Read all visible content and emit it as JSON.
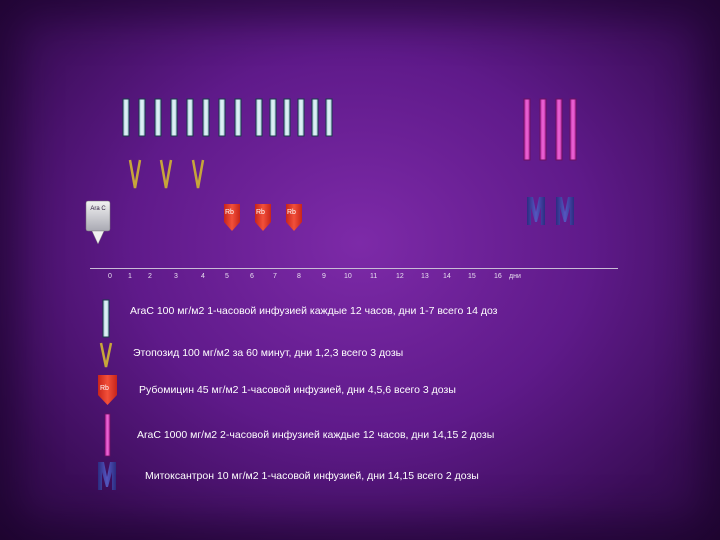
{
  "timeline": {
    "ticks": [
      "0",
      "1",
      "2",
      "3",
      "4",
      "5",
      "6",
      "7",
      "8",
      "9",
      "10",
      "11",
      "12",
      "13",
      "14",
      "15",
      "16"
    ],
    "unit": "дни"
  },
  "markers": {
    "arac_label": "Ara C",
    "rb_label": "Rb"
  },
  "legend": [
    {
      "icon": "arac-low-bar",
      "text": "AraC  100 мг/м2 1-часовой инфузией каждые 12 часов, дни 1-7 всего 14 доз"
    },
    {
      "icon": "etoposide-v",
      "text": "Этопозид 100 мг/м2 за 60 минут, дни 1,2,3 всего 3 дозы"
    },
    {
      "icon": "rubomycin-rb",
      "text": "Рубомицин 45 мг/м2 1-часовой инфузией, дни 4,5,6 всего 3 дозы"
    },
    {
      "icon": "arac-high-bar",
      "text": "AraC  1000 мг/м2 2-часовой инфузией каждые 12 часов, дни 14,15 2 дозы"
    },
    {
      "icon": "mitoxantrone-m",
      "text": "Митоксантрон 10 мг/м2 1-часовой инфузией, дни 14,15 всего 2 дозы"
    }
  ],
  "colors": {
    "arac_low": "#cfe9f0",
    "arac_high": "#e040c8",
    "rb": "#e23a22",
    "etoposide": "#c7a63a",
    "mitoxantrone": "#3b3c9a"
  }
}
